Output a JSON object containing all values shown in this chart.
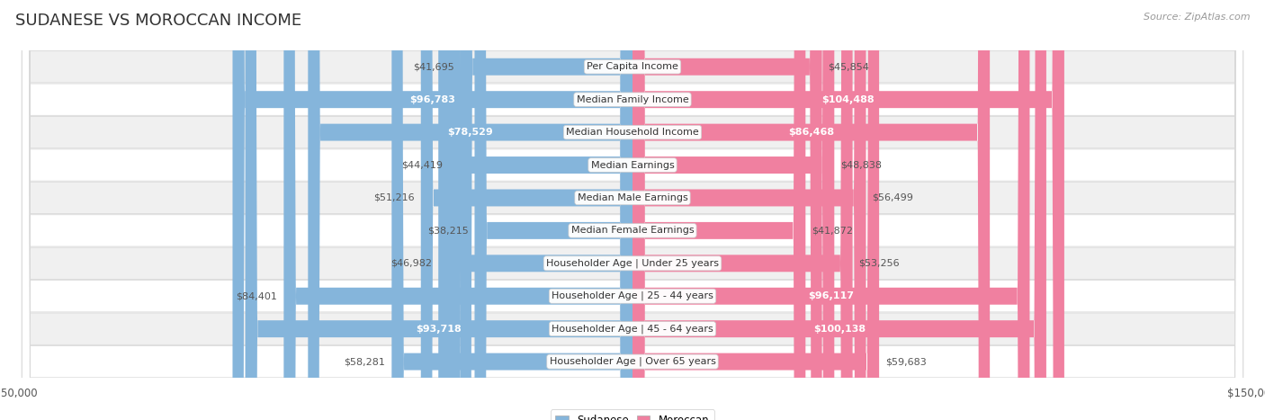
{
  "title": "SUDANESE VS MOROCCAN INCOME",
  "source": "Source: ZipAtlas.com",
  "categories": [
    "Per Capita Income",
    "Median Family Income",
    "Median Household Income",
    "Median Earnings",
    "Median Male Earnings",
    "Median Female Earnings",
    "Householder Age | Under 25 years",
    "Householder Age | 25 - 44 years",
    "Householder Age | 45 - 64 years",
    "Householder Age | Over 65 years"
  ],
  "sudanese_values": [
    41695,
    96783,
    78529,
    44419,
    51216,
    38215,
    46982,
    84401,
    93718,
    58281
  ],
  "moroccan_values": [
    45854,
    104488,
    86468,
    48838,
    56499,
    41872,
    53256,
    96117,
    100138,
    59683
  ],
  "sudanese_labels": [
    "$41,695",
    "$96,783",
    "$78,529",
    "$44,419",
    "$51,216",
    "$38,215",
    "$46,982",
    "$84,401",
    "$93,718",
    "$58,281"
  ],
  "moroccan_labels": [
    "$45,854",
    "$104,488",
    "$86,468",
    "$48,838",
    "$56,499",
    "$41,872",
    "$53,256",
    "$96,117",
    "$100,138",
    "$59,683"
  ],
  "sudanese_color": "#85b5db",
  "moroccan_color": "#f080a0",
  "sudanese_label_inside": [
    false,
    true,
    true,
    false,
    false,
    false,
    false,
    false,
    true,
    false
  ],
  "moroccan_label_inside": [
    false,
    true,
    true,
    false,
    false,
    false,
    false,
    true,
    true,
    false
  ],
  "max_value": 150000,
  "bg_color": "#ffffff",
  "row_colors": [
    "#f0f0f0",
    "#ffffff"
  ],
  "title_fontsize": 13,
  "label_fontsize": 8,
  "category_fontsize": 8,
  "source_fontsize": 8
}
